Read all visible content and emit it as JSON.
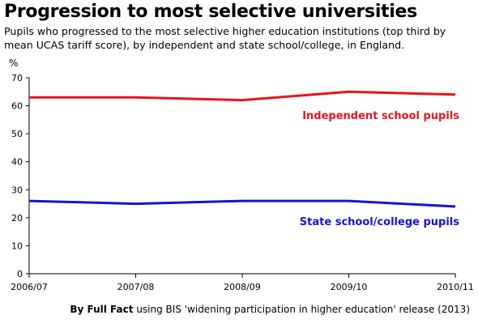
{
  "title": "Progression to most selective universities",
  "subtitle": "Pupils who progressed to the most selective higher education institutions  (top third by mean UCAS tariff score), by independent and state school/college, in England.",
  "footer": {
    "by": "By Full Fact",
    "source": " using BIS 'widening participation  in higher education' release (2013)"
  },
  "chart_data": {
    "type": "line",
    "ylabel": "%",
    "xlabel": "",
    "ylim": [
      0,
      70
    ],
    "yticks": [
      0,
      10,
      20,
      30,
      40,
      50,
      60,
      70
    ],
    "categories": [
      "2006/07",
      "2007/08",
      "2008/09",
      "2009/10",
      "2010/11"
    ],
    "grid": false,
    "legend": "inline labels",
    "series": [
      {
        "name": "Independent school pupils",
        "color": "#e8141c",
        "values": [
          63,
          63,
          62,
          65,
          64
        ]
      },
      {
        "name": "State school/college pupils",
        "color": "#1414d2",
        "values": [
          26,
          25,
          26,
          26,
          24
        ]
      }
    ]
  }
}
